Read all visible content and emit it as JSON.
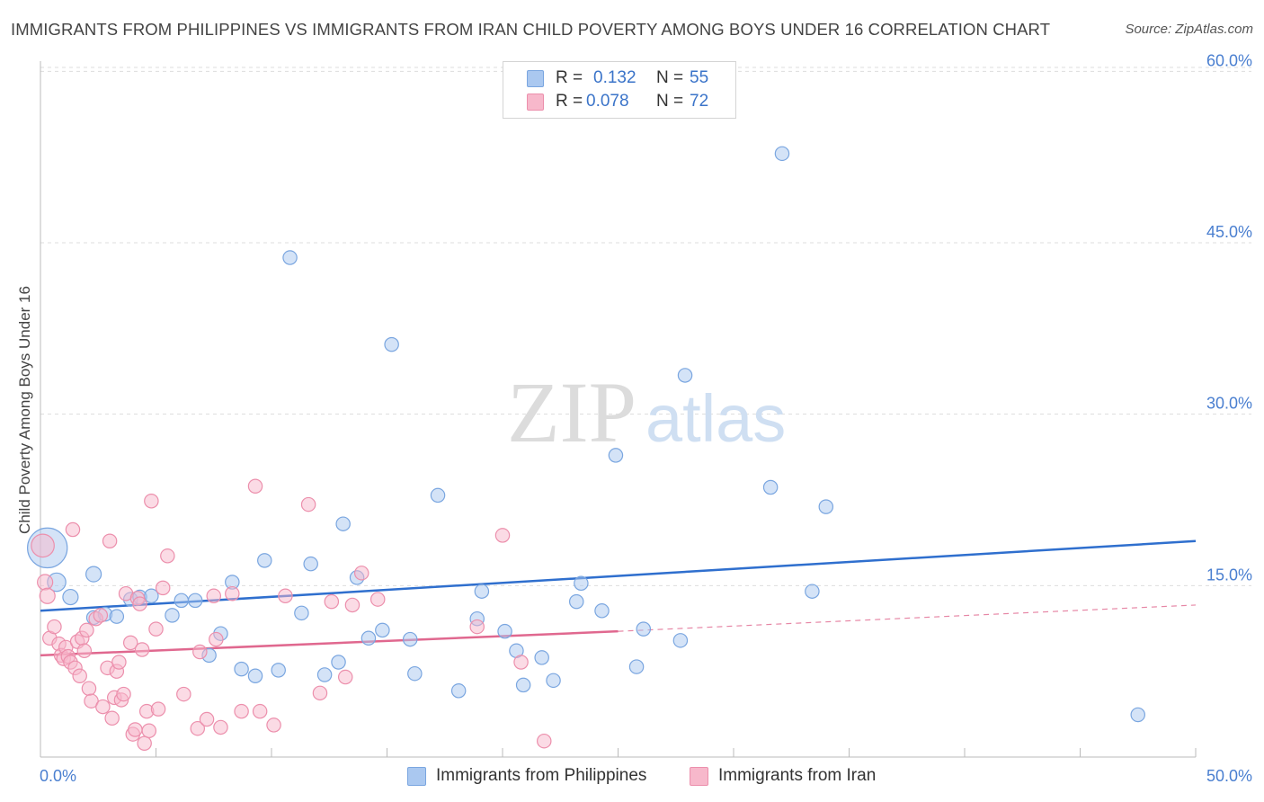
{
  "title": "IMMIGRANTS FROM PHILIPPINES VS IMMIGRANTS FROM IRAN CHILD POVERTY AMONG BOYS UNDER 16 CORRELATION CHART",
  "source": "Source: ZipAtlas.com",
  "watermark": {
    "zip": "ZIP",
    "atlas": "atlas"
  },
  "legend": {
    "r_label": "R =",
    "n_label": "N =",
    "rows": [
      {
        "r": "0.132",
        "n": "55"
      },
      {
        "r": "0.078",
        "n": "72"
      }
    ]
  },
  "colors": {
    "philippines_fill": "#aac8f0",
    "philippines_stroke": "#7aa6e0",
    "philippines_line": "#2f6fce",
    "iran_fill": "#f7b8cb",
    "iran_stroke": "#ec8fac",
    "iran_line": "#e0688f",
    "tick_label": "#4a7fd0",
    "grid": "#dddddd"
  },
  "chart_data": {
    "type": "scatter",
    "title": "IMMIGRANTS FROM PHILIPPINES VS IMMIGRANTS FROM IRAN CHILD POVERTY AMONG BOYS UNDER 16 CORRELATION CHART",
    "xlabel": "",
    "ylabel": "Child Poverty Among Boys Under 16",
    "xlim": [
      0,
      50
    ],
    "ylim": [
      0,
      63
    ],
    "x_tick_labels": [
      "0.0%",
      "50.0%"
    ],
    "y_ticks": [
      15,
      30,
      45,
      60
    ],
    "y_tick_labels": [
      "15.0%",
      "30.0%",
      "45.0%",
      "60.0%"
    ],
    "grid": "horizontal dashed",
    "legend_placement": "top-center",
    "series": [
      {
        "name": "Immigrants from Philippines",
        "r": 0.132,
        "n": 55,
        "trend": {
          "x": [
            0,
            50
          ],
          "y": [
            12.8,
            18.9
          ]
        },
        "points": [
          [
            0.3,
            18.3,
            2.6
          ],
          [
            0.7,
            15.3,
            1.2
          ],
          [
            1.3,
            14.0,
            1.0
          ],
          [
            2.3,
            12.2,
            0.9
          ],
          [
            2.3,
            16.0,
            1.0
          ],
          [
            2.8,
            12.5,
            0.9
          ],
          [
            3.3,
            12.3,
            0.9
          ],
          [
            3.9,
            13.8,
            0.9
          ],
          [
            4.3,
            14.0,
            0.9
          ],
          [
            4.8,
            14.1,
            0.9
          ],
          [
            5.7,
            12.4,
            0.9
          ],
          [
            6.1,
            13.7,
            0.9
          ],
          [
            6.7,
            13.7,
            0.9
          ],
          [
            7.3,
            8.9,
            0.9
          ],
          [
            7.8,
            10.8,
            0.9
          ],
          [
            8.3,
            15.3,
            0.9
          ],
          [
            8.7,
            7.7,
            0.9
          ],
          [
            9.3,
            7.1,
            0.9
          ],
          [
            9.7,
            17.2,
            0.9
          ],
          [
            10.3,
            7.6,
            0.9
          ],
          [
            10.8,
            43.7,
            0.9
          ],
          [
            11.3,
            12.6,
            0.9
          ],
          [
            11.7,
            16.9,
            0.9
          ],
          [
            12.3,
            7.2,
            0.9
          ],
          [
            12.9,
            8.3,
            0.9
          ],
          [
            13.1,
            20.4,
            0.9
          ],
          [
            13.7,
            15.7,
            0.9
          ],
          [
            14.2,
            10.4,
            0.9
          ],
          [
            14.8,
            11.1,
            0.9
          ],
          [
            15.2,
            36.1,
            0.9
          ],
          [
            16.0,
            10.3,
            0.9
          ],
          [
            16.2,
            7.3,
            0.9
          ],
          [
            17.2,
            22.9,
            0.9
          ],
          [
            18.1,
            5.8,
            0.9
          ],
          [
            18.9,
            12.1,
            0.9
          ],
          [
            19.1,
            14.5,
            0.9
          ],
          [
            20.1,
            11.0,
            0.9
          ],
          [
            20.6,
            9.3,
            0.9
          ],
          [
            20.9,
            6.3,
            0.9
          ],
          [
            21.7,
            8.7,
            0.9
          ],
          [
            22.2,
            6.7,
            0.9
          ],
          [
            23.2,
            13.6,
            0.9
          ],
          [
            23.4,
            15.2,
            0.9
          ],
          [
            24.3,
            12.8,
            0.9
          ],
          [
            24.9,
            26.4,
            0.9
          ],
          [
            25.8,
            7.9,
            0.9
          ],
          [
            26.1,
            11.2,
            0.9
          ],
          [
            27.7,
            10.2,
            0.9
          ],
          [
            27.9,
            33.4,
            0.9
          ],
          [
            31.6,
            23.6,
            0.9
          ],
          [
            32.1,
            52.8,
            0.9
          ],
          [
            33.4,
            14.5,
            0.9
          ],
          [
            34.0,
            21.9,
            0.9
          ],
          [
            47.5,
            3.7,
            0.9
          ]
        ]
      },
      {
        "name": "Immigrants from Iran",
        "r": 0.078,
        "n": 72,
        "trend": {
          "x": [
            0,
            25.0
          ],
          "y": [
            8.9,
            11.0
          ]
        },
        "trend_extension": {
          "x": [
            25.0,
            50
          ],
          "y": [
            11.0,
            13.3
          ]
        },
        "points": [
          [
            0.1,
            18.5,
            1.5
          ],
          [
            0.2,
            15.3,
            1.0
          ],
          [
            0.3,
            14.1,
            1.0
          ],
          [
            0.4,
            10.4,
            0.9
          ],
          [
            0.6,
            11.4,
            0.9
          ],
          [
            0.8,
            9.9,
            0.9
          ],
          [
            0.9,
            8.9,
            0.9
          ],
          [
            1.0,
            8.6,
            0.9
          ],
          [
            1.1,
            9.6,
            0.9
          ],
          [
            1.2,
            8.8,
            0.9
          ],
          [
            1.3,
            8.3,
            0.9
          ],
          [
            1.4,
            19.9,
            0.9
          ],
          [
            1.5,
            7.8,
            0.9
          ],
          [
            1.6,
            10.1,
            0.9
          ],
          [
            1.7,
            7.1,
            0.9
          ],
          [
            1.8,
            10.4,
            0.9
          ],
          [
            1.9,
            9.3,
            0.9
          ],
          [
            2.0,
            11.1,
            0.9
          ],
          [
            2.1,
            6.0,
            0.9
          ],
          [
            2.2,
            4.9,
            0.9
          ],
          [
            2.4,
            12.1,
            0.9
          ],
          [
            2.6,
            12.4,
            0.9
          ],
          [
            2.7,
            4.4,
            0.9
          ],
          [
            2.9,
            7.8,
            0.9
          ],
          [
            3.0,
            18.9,
            0.9
          ],
          [
            3.1,
            3.4,
            0.9
          ],
          [
            3.2,
            5.2,
            0.9
          ],
          [
            3.3,
            7.5,
            0.9
          ],
          [
            3.4,
            8.3,
            0.9
          ],
          [
            3.5,
            5.0,
            0.9
          ],
          [
            3.6,
            5.5,
            0.9
          ],
          [
            3.7,
            14.3,
            0.9
          ],
          [
            3.9,
            10.0,
            0.9
          ],
          [
            4.0,
            2.0,
            0.9
          ],
          [
            4.1,
            2.4,
            0.9
          ],
          [
            4.2,
            13.9,
            0.9
          ],
          [
            4.3,
            13.4,
            0.9
          ],
          [
            4.4,
            9.4,
            0.9
          ],
          [
            4.5,
            1.2,
            0.9
          ],
          [
            4.6,
            4.0,
            0.9
          ],
          [
            4.7,
            2.3,
            0.9
          ],
          [
            4.8,
            22.4,
            0.9
          ],
          [
            5.0,
            11.2,
            0.9
          ],
          [
            5.1,
            4.2,
            0.9
          ],
          [
            5.3,
            14.8,
            0.9
          ],
          [
            5.5,
            17.6,
            0.9
          ],
          [
            6.2,
            5.5,
            0.9
          ],
          [
            6.8,
            2.5,
            0.9
          ],
          [
            6.9,
            9.2,
            0.9
          ],
          [
            7.2,
            3.3,
            0.9
          ],
          [
            7.5,
            14.1,
            0.9
          ],
          [
            7.6,
            10.3,
            0.9
          ],
          [
            7.8,
            2.6,
            0.9
          ],
          [
            8.3,
            14.3,
            0.9
          ],
          [
            8.7,
            4.0,
            0.9
          ],
          [
            9.3,
            23.7,
            0.9
          ],
          [
            9.5,
            4.0,
            0.9
          ],
          [
            10.1,
            2.8,
            0.9
          ],
          [
            10.6,
            14.1,
            0.9
          ],
          [
            11.6,
            22.1,
            0.9
          ],
          [
            12.1,
            5.6,
            0.9
          ],
          [
            12.6,
            13.6,
            0.9
          ],
          [
            13.2,
            7.0,
            0.9
          ],
          [
            13.5,
            13.3,
            0.9
          ],
          [
            13.9,
            16.1,
            0.9
          ],
          [
            14.6,
            13.8,
            0.9
          ],
          [
            18.9,
            11.4,
            0.9
          ],
          [
            20.0,
            19.4,
            0.9
          ],
          [
            20.8,
            8.3,
            0.9
          ],
          [
            21.8,
            1.4,
            0.9
          ]
        ]
      }
    ]
  },
  "bottom_legend": [
    "Immigrants from Philippines",
    "Immigrants from Iran"
  ]
}
